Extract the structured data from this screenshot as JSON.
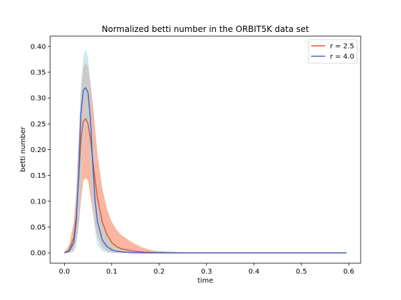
{
  "chart_data": {
    "type": "line",
    "title": "Normalized betti number in the ORBIT5K data set",
    "xlabel": "time",
    "ylabel": "betti number",
    "xlim": [
      -0.03,
      0.625
    ],
    "ylim": [
      -0.02,
      0.42
    ],
    "xticks": [
      0.0,
      0.1,
      0.2,
      0.3,
      0.4,
      0.5,
      0.6
    ],
    "xtick_labels": [
      "0.0",
      "0.1",
      "0.2",
      "0.3",
      "0.4",
      "0.5",
      "0.6"
    ],
    "yticks": [
      0.0,
      0.05,
      0.1,
      0.15,
      0.2,
      0.25,
      0.3,
      0.35,
      0.4
    ],
    "ytick_labels": [
      "0.00",
      "0.05",
      "0.10",
      "0.15",
      "0.20",
      "0.25",
      "0.30",
      "0.35",
      "0.40"
    ],
    "grid": false,
    "legend_position": "upper right",
    "x": [
      0.0,
      0.01,
      0.02,
      0.025,
      0.03,
      0.035,
      0.04,
      0.045,
      0.05,
      0.055,
      0.06,
      0.065,
      0.07,
      0.08,
      0.09,
      0.1,
      0.11,
      0.12,
      0.14,
      0.16,
      0.18,
      0.2,
      0.22,
      0.25,
      0.3,
      0.35,
      0.4,
      0.45,
      0.5,
      0.55,
      0.595
    ],
    "series": [
      {
        "name": "r = 2.5",
        "color": "#e8532a",
        "band_color": "#f9a98f",
        "values": [
          0.0,
          0.005,
          0.03,
          0.07,
          0.14,
          0.22,
          0.255,
          0.26,
          0.25,
          0.22,
          0.18,
          0.14,
          0.105,
          0.06,
          0.035,
          0.02,
          0.012,
          0.008,
          0.004,
          0.002,
          0.001,
          0.0005,
          0.0002,
          0.0,
          0.0,
          0.0,
          0.0,
          0.0,
          0.0,
          0.0,
          0.0
        ],
        "lower": [
          0.0,
          0.0,
          0.005,
          0.02,
          0.05,
          0.1,
          0.14,
          0.145,
          0.14,
          0.11,
          0.08,
          0.05,
          0.03,
          0.01,
          0.003,
          0.001,
          0.0,
          0.0,
          0.0,
          0.0,
          0.0,
          0.0,
          0.0,
          0.0,
          0.0,
          0.0,
          0.0,
          0.0,
          0.0,
          0.0,
          0.0
        ],
        "upper": [
          0.002,
          0.015,
          0.06,
          0.12,
          0.22,
          0.31,
          0.36,
          0.37,
          0.36,
          0.33,
          0.29,
          0.24,
          0.19,
          0.125,
          0.085,
          0.06,
          0.045,
          0.035,
          0.022,
          0.012,
          0.006,
          0.003,
          0.001,
          0.0003,
          0.0,
          0.0,
          0.0,
          0.0,
          0.0,
          0.0,
          0.0
        ]
      },
      {
        "name": "r = 4.0",
        "color": "#4a63c9",
        "band_color": "#a8dbe8",
        "values": [
          0.0,
          0.003,
          0.02,
          0.06,
          0.15,
          0.27,
          0.315,
          0.32,
          0.31,
          0.26,
          0.17,
          0.1,
          0.06,
          0.025,
          0.012,
          0.006,
          0.003,
          0.002,
          0.0005,
          0.0002,
          0.0,
          0.0,
          0.0,
          0.0,
          0.0,
          0.0,
          0.0,
          0.0,
          0.0,
          0.0,
          0.0
        ],
        "lower": [
          0.0,
          0.0,
          0.002,
          0.015,
          0.05,
          0.12,
          0.2,
          0.25,
          0.23,
          0.16,
          0.09,
          0.04,
          0.015,
          0.003,
          0.0,
          0.0,
          0.0,
          0.0,
          0.0,
          0.0,
          0.0,
          0.0,
          0.0,
          0.0,
          0.0,
          0.0,
          0.0,
          0.0,
          0.0,
          0.0,
          0.0
        ],
        "upper": [
          0.001,
          0.01,
          0.04,
          0.11,
          0.22,
          0.33,
          0.38,
          0.395,
          0.38,
          0.33,
          0.24,
          0.16,
          0.11,
          0.06,
          0.035,
          0.02,
          0.013,
          0.009,
          0.006,
          0.005,
          0.004,
          0.004,
          0.004,
          0.0,
          0.0,
          0.0,
          0.0,
          0.0,
          0.0,
          0.0,
          0.0
        ]
      }
    ]
  }
}
